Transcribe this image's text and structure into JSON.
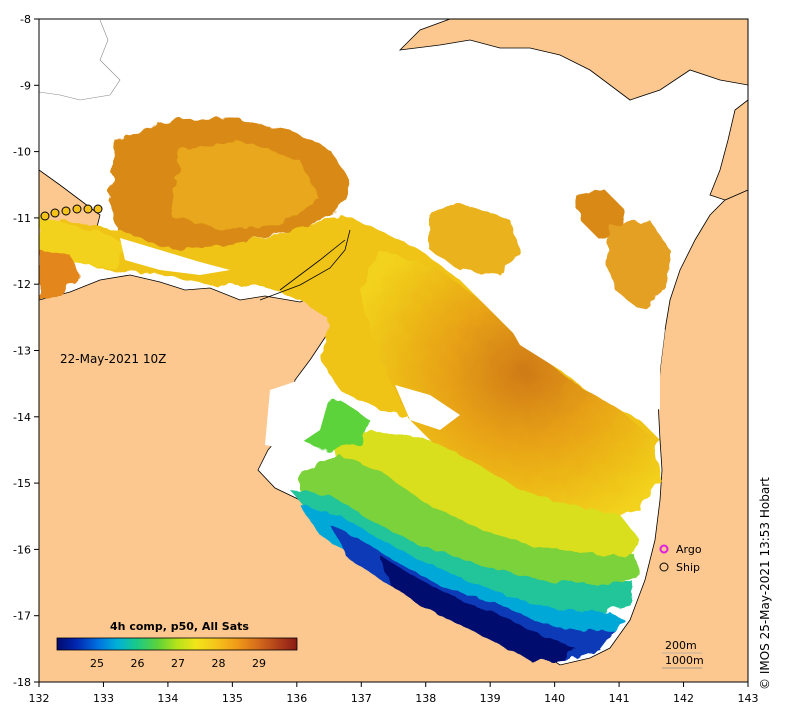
{
  "map": {
    "date_label": "22-May-2021 10Z",
    "lon_ticks": [
      "132",
      "133",
      "134",
      "135",
      "136",
      "137",
      "138",
      "139",
      "140",
      "141",
      "142",
      "143"
    ],
    "lat_ticks": [
      "-8",
      "-9",
      "-10",
      "-11",
      "-12",
      "-13",
      "-14",
      "-15",
      "-16",
      "-17",
      "-18"
    ],
    "colorbar": {
      "title": "4h comp, p50, All Sats",
      "ticks": [
        "25",
        "26",
        "27",
        "28",
        "29"
      ],
      "colors": [
        "#000a6e",
        "#0026b0",
        "#0070e0",
        "#00b0d8",
        "#19c98a",
        "#5cd23a",
        "#b7e21a",
        "#f2e41a",
        "#f5c21a",
        "#f09a18",
        "#d8701a",
        "#b0401a",
        "#8a1a14"
      ]
    },
    "legend": {
      "argo": "Argo",
      "ship": "Ship",
      "argo_color": "#e01ee0"
    },
    "depth_labels": [
      "200m",
      "1000m"
    ],
    "credit": "© IMOS 25-May-2021 13:53 Hobart",
    "land_color": "#fcc890",
    "cloud_color": "#ffffff"
  }
}
